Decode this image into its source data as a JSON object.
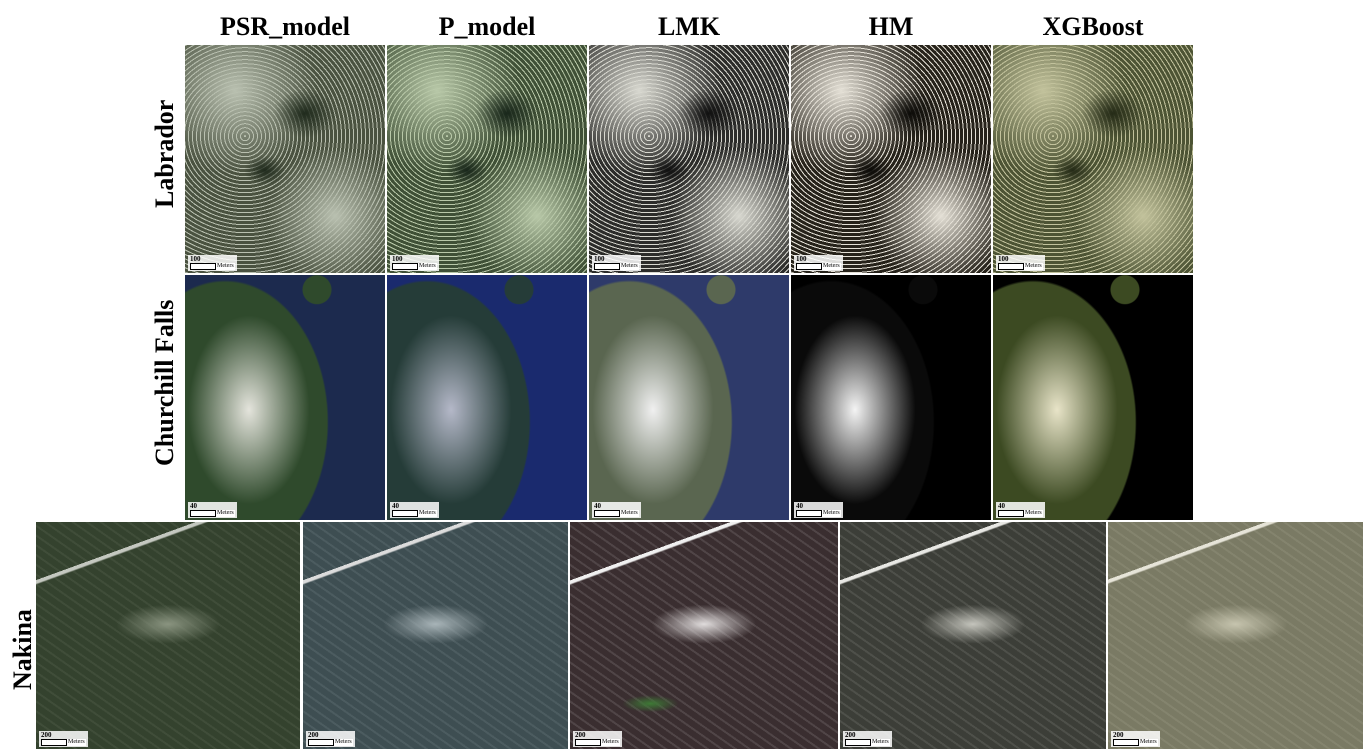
{
  "columns": [
    "PSR_model",
    "P_model",
    "LMK",
    "HM",
    "XGBoost"
  ],
  "rows": [
    "Labrador",
    "Churchill Falls",
    "Nakina"
  ],
  "scale": {
    "labrador": "100",
    "churchill": [
      "40",
      "40",
      "40",
      "40",
      "40"
    ],
    "nakina": "200",
    "unit": "Meters"
  },
  "palette": {
    "labrador": {
      "PSR_model": {
        "base": "#4a5240",
        "light": "#b9c0b0",
        "dark": "#1f2a1c"
      },
      "P_model": {
        "base": "#3f5036",
        "light": "#b8c8a8",
        "dark": "#18261a"
      },
      "LMK": {
        "base": "#2c2c2a",
        "light": "#d8d8d0",
        "dark": "#101010"
      },
      "HM": {
        "base": "#26221a",
        "light": "#e4e0d6",
        "dark": "#0c0b08"
      },
      "XGBoost": {
        "base": "#4d5434",
        "light": "#c2c29c",
        "dark": "#242a16"
      }
    },
    "churchill": {
      "PSR_model": {
        "water": "#1c2a4e",
        "land": "#2f4a2c",
        "light": "#e4e4dc"
      },
      "P_model": {
        "water": "#1a2a6e",
        "land": "#253c38",
        "light": "#b4b8c8"
      },
      "LMK": {
        "water": "#2e3a6a",
        "land": "#5a6650",
        "light": "#f0f0f0"
      },
      "HM": {
        "water": "#000000",
        "land": "#0a0a0a",
        "light": "#f4f4f4"
      },
      "XGBoost": {
        "water": "#000000",
        "land": "#3c4a22",
        "light": "#e8e4c8"
      }
    },
    "nakina": {
      "PSR_model": {
        "base": "#34422e",
        "light": "#8a9480",
        "road": "#c4c8c0"
      },
      "P_model": {
        "base": "#3e4e52",
        "light": "#a8b4b8",
        "road": "#dcdcdc"
      },
      "LMK": {
        "base": "#3a2e30",
        "light": "#e0dcdc",
        "road": "#f0f0f0",
        "green": "#3e7a36"
      },
      "HM": {
        "base": "#3c3e38",
        "light": "#c4c4bc",
        "road": "#e8e8e4"
      },
      "XGBoost": {
        "base": "#7a7a64",
        "light": "#c6c4ae",
        "road": "#e6e4d8"
      }
    }
  }
}
